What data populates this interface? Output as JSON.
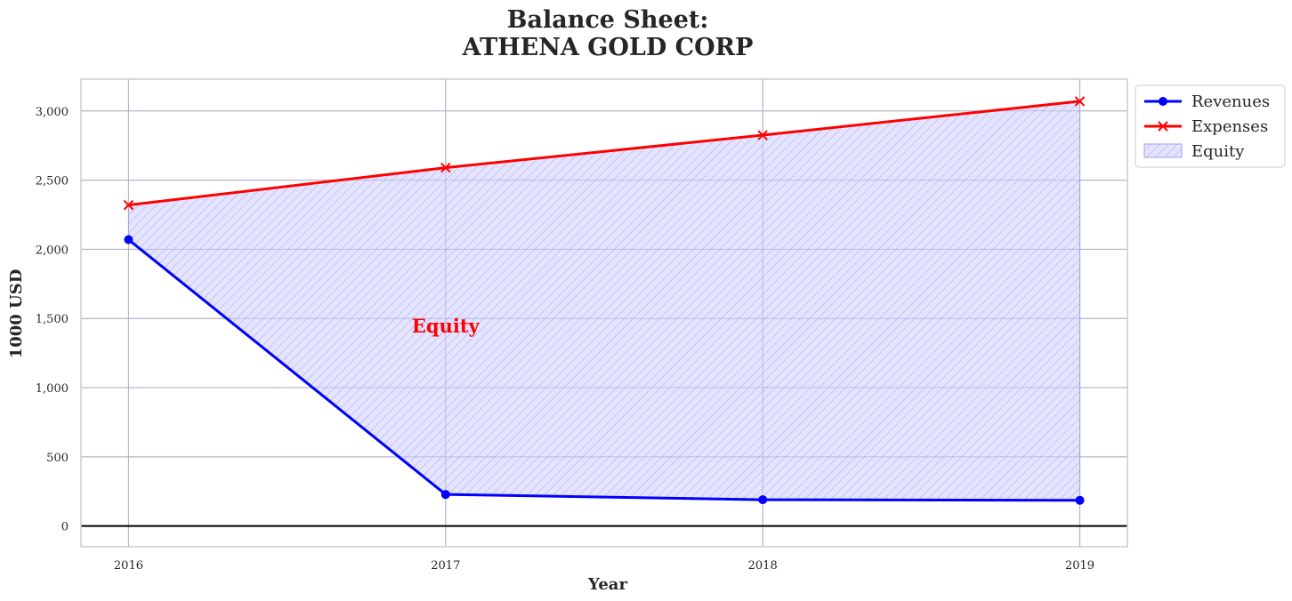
{
  "chart_data": {
    "type": "line",
    "title_line1": "Balance Sheet:",
    "title_line2": "ATHENA GOLD CORP",
    "xlabel": "Year",
    "ylabel": "1000 USD",
    "categories": [
      "2016",
      "2017",
      "2018",
      "2019"
    ],
    "x": [
      2016,
      2017,
      2018,
      2019
    ],
    "xlim": [
      2015.85,
      2019.15
    ],
    "ylim": [
      -150,
      3230
    ],
    "yticks": [
      0,
      500,
      1000,
      1500,
      2000,
      2500,
      3000
    ],
    "ytick_labels": [
      "0",
      "500",
      "1,000",
      "1,500",
      "2,000",
      "2,500",
      "3,000"
    ],
    "grid": true,
    "series": [
      {
        "name": "Revenues",
        "values": [
          2070,
          228,
          190,
          186
        ],
        "color": "#0000ff",
        "marker": "circle"
      },
      {
        "name": "Expenses",
        "values": [
          2320,
          2590,
          2825,
          3070
        ],
        "color": "#ff0000",
        "marker": "x"
      }
    ],
    "fill": {
      "name": "Equity",
      "between": [
        "Revenues",
        "Expenses"
      ],
      "color": "#8080ff",
      "hatch": "////"
    },
    "annotation": {
      "text": "Equity",
      "x": 2017,
      "y": 1400,
      "color": "#ff0000"
    },
    "legend_placement": "outside-top-right",
    "zero_line": true
  }
}
